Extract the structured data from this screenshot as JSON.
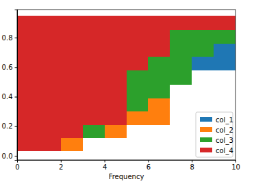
{
  "chart_data": {
    "type": "area",
    "stacked": true,
    "line_style": "steps",
    "x_label": "Frequency",
    "bins": [
      0,
      1,
      2,
      3,
      4,
      5,
      6,
      7,
      8,
      9,
      10
    ],
    "baseline": [
      0.03,
      0.03,
      0.03,
      0.12,
      0.12,
      0.21,
      0.21,
      0.48,
      0.58,
      0.58
    ],
    "series": [
      {
        "name": "col_1",
        "color": "#1f77b4",
        "values": [
          0,
          0,
          0,
          0,
          0,
          0,
          0,
          0,
          0.09,
          0.18
        ]
      },
      {
        "name": "col_2",
        "color": "#ff7f0e",
        "values": [
          0,
          0,
          0.09,
          0,
          0.09,
          0.09,
          0.18,
          0,
          0,
          0
        ]
      },
      {
        "name": "col_3",
        "color": "#2ca02c",
        "values": [
          0,
          0,
          0,
          0.09,
          0,
          0.28,
          0.28,
          0.37,
          0.18,
          0.09
        ]
      },
      {
        "name": "col_4",
        "color": "#d62728",
        "values": [
          0.92,
          0.92,
          0.83,
          0.74,
          0.74,
          0.37,
          0.28,
          0.1,
          0.1,
          0.1
        ]
      }
    ],
    "xlim": [
      0,
      10
    ],
    "xticks": [
      0,
      2,
      4,
      6,
      8,
      10
    ],
    "ylim": [
      -0.028,
      0.99
    ],
    "yticks": [
      {
        "value": 0,
        "label": "0.0"
      },
      {
        "value": 0.2,
        "label": "0.2"
      },
      {
        "value": 0.4,
        "label": "0.4"
      },
      {
        "value": 0.6,
        "label": "0.6"
      },
      {
        "value": 0.8,
        "label": "0.8"
      }
    ],
    "grid": false,
    "legend": "lower right"
  }
}
